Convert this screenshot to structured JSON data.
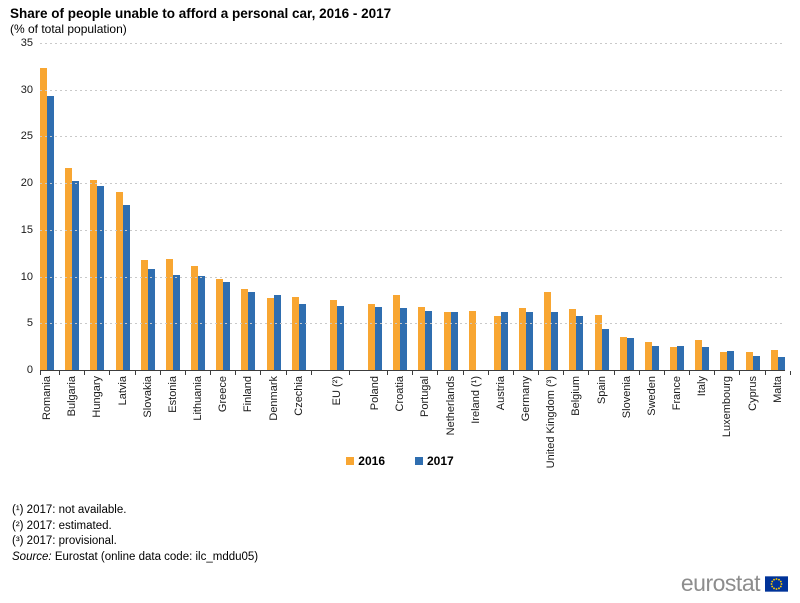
{
  "header": {
    "note": "title and subtitle are bound from chart_data"
  },
  "footnotes": {
    "f1": "(¹) 2017: not available.",
    "f2": "(²) 2017: estimated.",
    "f3": "(³) 2017: provisional.",
    "source_label": "Source:",
    "source_text": "Eurostat (online data code: ilc_mddu05)"
  },
  "logo": {
    "wordmark": "eurostat",
    "flag_blue": "#003399",
    "star_yellow": "#ffcc00"
  },
  "chart_data": {
    "type": "bar",
    "title": "Share of people unable to afford a personal car, 2016 - 2017",
    "subtitle": "(% of total population)",
    "ylabel": "% of total population",
    "ylim": [
      0,
      35
    ],
    "yticks": [
      0,
      5,
      10,
      15,
      20,
      25,
      30,
      35
    ],
    "grid": "horizontal-dashed",
    "legend_position": "bottom-center",
    "x_label_rotation": -90,
    "separated_category": "EU (²)",
    "categories": [
      "Romania",
      "Bulgaria",
      "Hungary",
      "Latvia",
      "Slovakia",
      "Estonia",
      "Lithuania",
      "Greece",
      "Finland",
      "Denmark",
      "Czechia",
      "EU (²)",
      "Poland",
      "Croatia",
      "Portugal",
      "Netherlands",
      "Ireland (¹)",
      "Austria",
      "Germany",
      "United Kingdom (³)",
      "Belgium",
      "Spain",
      "Slovenia",
      "Sweden",
      "France",
      "Italy",
      "Luxembourg",
      "Cyprus",
      "Malta"
    ],
    "series": [
      {
        "name": "2016",
        "color": "#F8A632",
        "values": [
          32.3,
          21.6,
          20.3,
          19.1,
          11.8,
          11.9,
          11.1,
          9.7,
          8.7,
          7.7,
          7.8,
          7.5,
          7.1,
          8.0,
          6.7,
          6.2,
          6.3,
          5.8,
          6.6,
          8.4,
          6.5,
          5.9,
          3.5,
          3.0,
          2.5,
          3.2,
          1.9,
          1.9,
          2.1
        ]
      },
      {
        "name": "2017",
        "color": "#2F6EB0",
        "values": [
          29.3,
          20.2,
          19.7,
          17.7,
          10.8,
          10.2,
          10.1,
          9.4,
          8.3,
          8.0,
          7.1,
          6.8,
          6.7,
          6.6,
          6.3,
          6.2,
          null,
          6.2,
          6.2,
          6.2,
          5.8,
          4.4,
          3.4,
          2.6,
          2.6,
          2.5,
          2.0,
          1.5,
          1.4
        ]
      }
    ]
  }
}
